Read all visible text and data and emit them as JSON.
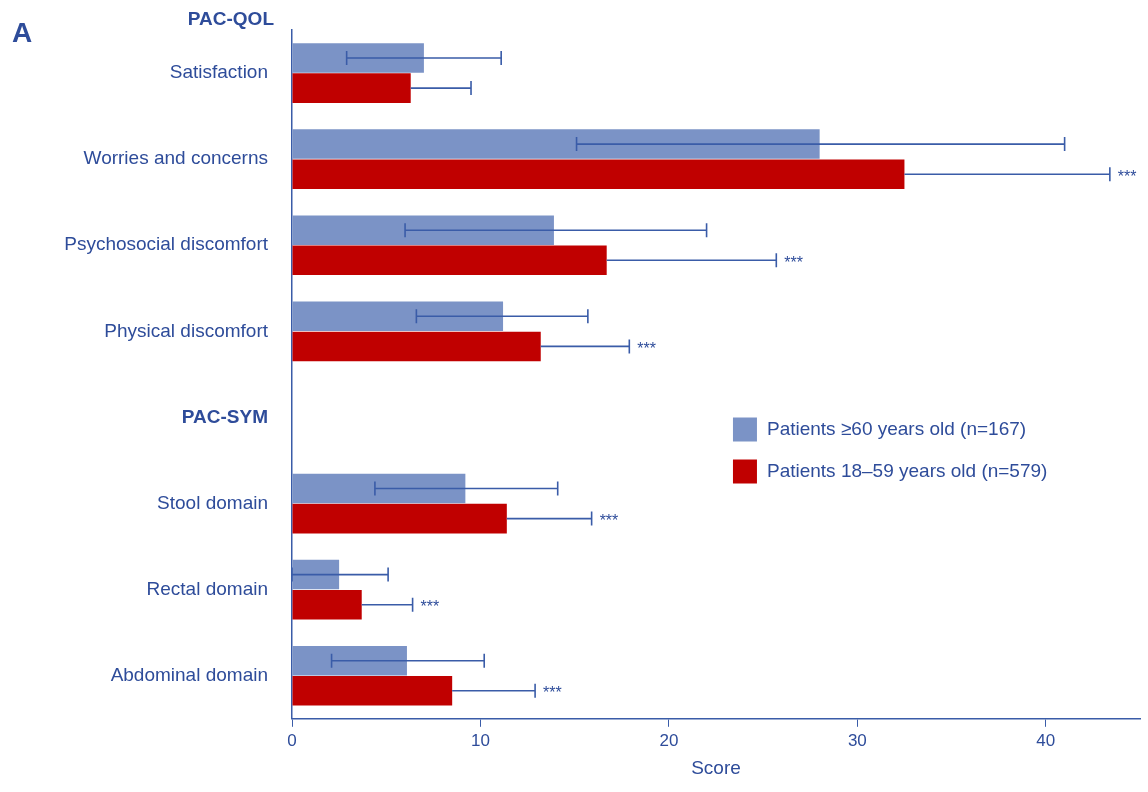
{
  "chart_data": {
    "type": "bar",
    "orientation": "horizontal",
    "xlabel": "Score",
    "categories": [
      "Satisfaction",
      "Worries and concerns",
      "Psychosocial discomfort",
      "Physical discomfort",
      "PAC-SYM",
      "Stool domain",
      "Rectal domain",
      "Abdominal domain"
    ],
    "series": [
      {
        "name": "Patients ≥60 years old (n=167)",
        "color": "#7b93c6",
        "values": [
          7.0,
          28.0,
          13.9,
          11.2,
          null,
          9.2,
          2.5,
          6.1
        ],
        "errors": [
          [
            2.9,
            11.1
          ],
          [
            15.1,
            41.0
          ],
          [
            6.0,
            22.0
          ],
          [
            6.6,
            15.7
          ],
          null,
          [
            4.4,
            14.1
          ],
          [
            0,
            5.1
          ],
          [
            2.1,
            10.2
          ]
        ]
      },
      {
        "name": "Patients 18–59 years old (n=579)",
        "color": "#c00000",
        "values": [
          6.3,
          32.5,
          16.7,
          13.2,
          null,
          11.4,
          3.7,
          8.5
        ],
        "errors": [
          [
            6.3,
            9.5
          ],
          [
            32.5,
            43.4
          ],
          [
            16.7,
            25.7
          ],
          [
            13.2,
            17.9
          ],
          null,
          [
            11.4,
            15.9
          ],
          [
            3.7,
            6.4
          ],
          [
            8.5,
            12.9
          ]
        ]
      }
    ],
    "xlim": [
      0,
      45
    ],
    "xticks": [
      0,
      10,
      20,
      30,
      40
    ],
    "grid": false,
    "legend": "right",
    "annotations": [
      "A",
      "PAC-QOL",
      "***",
      "***",
      "***",
      "***",
      "***",
      "***"
    ]
  }
}
